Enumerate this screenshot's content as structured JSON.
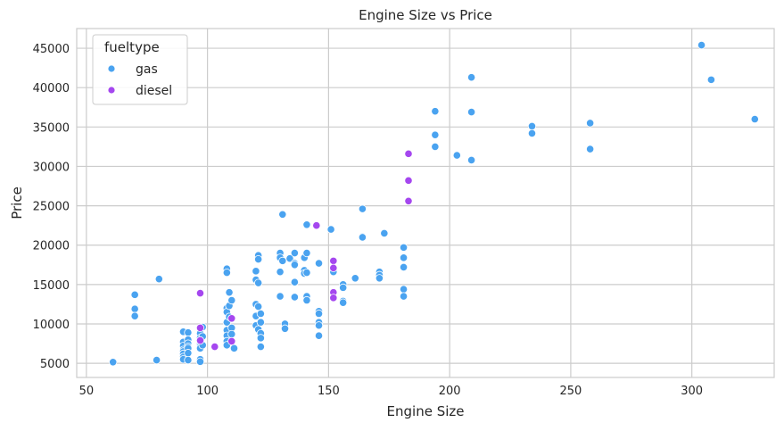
{
  "chart_data": {
    "type": "scatter",
    "title": "Engine Size vs Price",
    "xlabel": "Engine Size",
    "ylabel": "Price",
    "xlim": [
      46,
      334
    ],
    "ylim": [
      3200,
      47500
    ],
    "xticks": [
      50,
      100,
      150,
      200,
      250,
      300
    ],
    "yticks": [
      5000,
      10000,
      15000,
      20000,
      25000,
      30000,
      35000,
      40000,
      45000
    ],
    "grid": true,
    "legend": {
      "title": "fueltype",
      "position": "top-left"
    },
    "series": [
      {
        "name": "gas",
        "color": "#4aa3f0",
        "points": [
          [
            61,
            5150
          ],
          [
            70,
            13700
          ],
          [
            70,
            11900
          ],
          [
            70,
            11000
          ],
          [
            79,
            5400
          ],
          [
            80,
            15700
          ],
          [
            90,
            9000
          ],
          [
            90,
            7700
          ],
          [
            90,
            7200
          ],
          [
            90,
            6700
          ],
          [
            90,
            6500
          ],
          [
            90,
            6200
          ],
          [
            90,
            5800
          ],
          [
            90,
            5500
          ],
          [
            92,
            8900
          ],
          [
            92,
            8000
          ],
          [
            92,
            7500
          ],
          [
            92,
            7100
          ],
          [
            92,
            6900
          ],
          [
            92,
            6300
          ],
          [
            92,
            5400
          ],
          [
            97,
            9500
          ],
          [
            97,
            8800
          ],
          [
            97,
            8200
          ],
          [
            97,
            7800
          ],
          [
            97,
            7400
          ],
          [
            97,
            7100
          ],
          [
            97,
            6900
          ],
          [
            97,
            5500
          ],
          [
            97,
            5200
          ],
          [
            98,
            9600
          ],
          [
            98,
            8400
          ],
          [
            98,
            7300
          ],
          [
            108,
            17000
          ],
          [
            108,
            16500
          ],
          [
            108,
            12000
          ],
          [
            108,
            11500
          ],
          [
            108,
            10200
          ],
          [
            108,
            9200
          ],
          [
            108,
            8500
          ],
          [
            108,
            7800
          ],
          [
            108,
            7300
          ],
          [
            109,
            14000
          ],
          [
            109,
            12300
          ],
          [
            109,
            10900
          ],
          [
            110,
            13000
          ],
          [
            110,
            10700
          ],
          [
            110,
            9500
          ],
          [
            110,
            8700
          ],
          [
            111,
            6900
          ],
          [
            120,
            16700
          ],
          [
            120,
            15600
          ],
          [
            120,
            12500
          ],
          [
            120,
            11000
          ],
          [
            120,
            9800
          ],
          [
            121,
            18700
          ],
          [
            121,
            18200
          ],
          [
            121,
            15200
          ],
          [
            121,
            12200
          ],
          [
            121,
            9300
          ],
          [
            122,
            11300
          ],
          [
            122,
            10200
          ],
          [
            122,
            8800
          ],
          [
            122,
            8200
          ],
          [
            122,
            7100
          ],
          [
            130,
            19000
          ],
          [
            130,
            18400
          ],
          [
            130,
            16600
          ],
          [
            130,
            13500
          ],
          [
            131,
            23900
          ],
          [
            131,
            18000
          ],
          [
            132,
            10000
          ],
          [
            132,
            9400
          ],
          [
            134,
            18300
          ],
          [
            136,
            19000
          ],
          [
            136,
            17700
          ],
          [
            136,
            17500
          ],
          [
            136,
            15300
          ],
          [
            136,
            13400
          ],
          [
            140,
            18400
          ],
          [
            140,
            16800
          ],
          [
            140,
            16400
          ],
          [
            141,
            22600
          ],
          [
            141,
            19000
          ],
          [
            141,
            16500
          ],
          [
            141,
            13500
          ],
          [
            141,
            13000
          ],
          [
            146,
            17700
          ],
          [
            146,
            11600
          ],
          [
            146,
            11300
          ],
          [
            146,
            10200
          ],
          [
            146,
            9800
          ],
          [
            146,
            8500
          ],
          [
            151,
            22000
          ],
          [
            152,
            16900
          ],
          [
            152,
            16600
          ],
          [
            156,
            15000
          ],
          [
            156,
            14600
          ],
          [
            156,
            12900
          ],
          [
            156,
            12700
          ],
          [
            161,
            15800
          ],
          [
            164,
            24600
          ],
          [
            164,
            21100
          ],
          [
            164,
            21000
          ],
          [
            171,
            16600
          ],
          [
            171,
            16200
          ],
          [
            171,
            15800
          ],
          [
            173,
            21500
          ],
          [
            181,
            19700
          ],
          [
            181,
            18400
          ],
          [
            181,
            17200
          ],
          [
            181,
            14400
          ],
          [
            181,
            13500
          ],
          [
            194,
            37000
          ],
          [
            194,
            34000
          ],
          [
            194,
            32500
          ],
          [
            203,
            31400
          ],
          [
            209,
            41300
          ],
          [
            209,
            36900
          ],
          [
            209,
            30800
          ],
          [
            234,
            35100
          ],
          [
            234,
            34200
          ],
          [
            258,
            35500
          ],
          [
            258,
            32200
          ],
          [
            304,
            45400
          ],
          [
            308,
            41000
          ],
          [
            326,
            36000
          ]
        ]
      },
      {
        "name": "diesel",
        "color": "#a547ef",
        "points": [
          [
            97,
            13900
          ],
          [
            97,
            9500
          ],
          [
            97,
            7900
          ],
          [
            103,
            7100
          ],
          [
            110,
            10700
          ],
          [
            110,
            7800
          ],
          [
            145,
            22500
          ],
          [
            152,
            18000
          ],
          [
            152,
            17100
          ],
          [
            152,
            14000
          ],
          [
            152,
            13300
          ],
          [
            183,
            31600
          ],
          [
            183,
            28200
          ],
          [
            183,
            25600
          ]
        ]
      }
    ]
  }
}
